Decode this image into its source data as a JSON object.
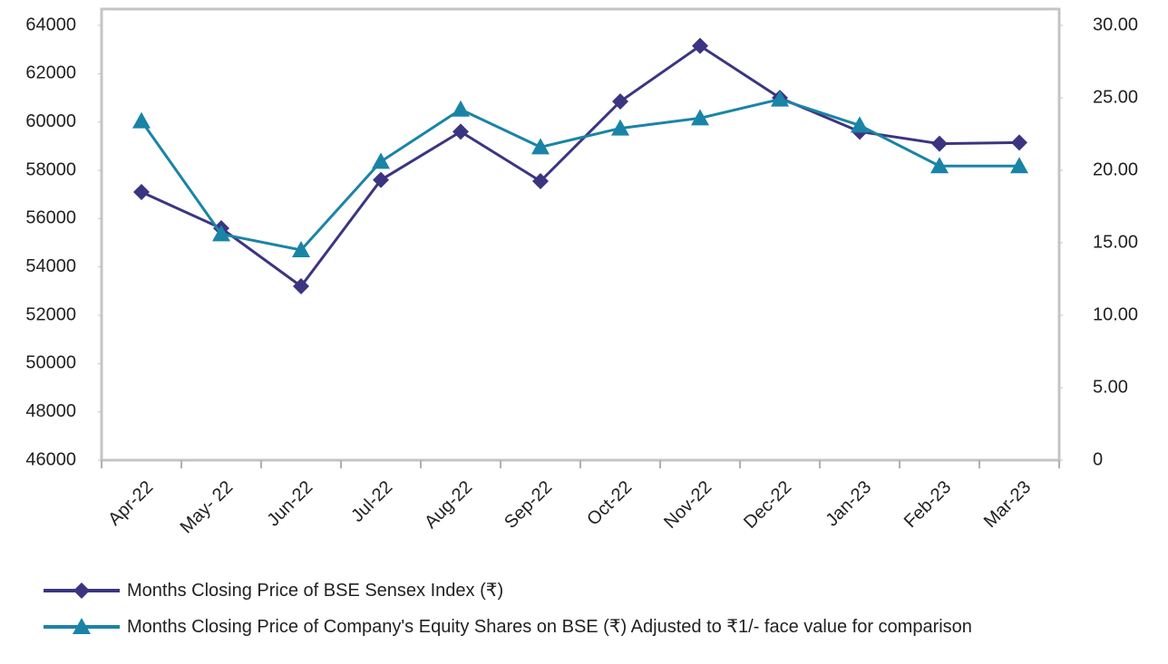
{
  "chart_data": {
    "type": "line",
    "categories": [
      "Apr-22",
      "May- 22",
      "Jun-22",
      "Jul-22",
      "Aug-22",
      "Sep-22",
      "Oct-22",
      "Nov-22",
      "Dec-22",
      "Jan-23",
      "Feb-23",
      "Mar-23"
    ],
    "series": [
      {
        "name": "Months Closing Price of BSE Sensex Index (₹)",
        "color": "#3b3581",
        "marker": "diamond",
        "values": [
          57100,
          55600,
          53200,
          57600,
          59600,
          57550,
          60850,
          63150,
          61000,
          59600,
          59100,
          59150
        ]
      },
      {
        "name": "Months Closing Price of Company's Equity Shares on BSE (₹) Adjusted to ₹1/- face value for comparison",
        "color": "#1a84a6",
        "marker": "triangle",
        "axis": "y2",
        "values": [
          23.4,
          15.6,
          14.5,
          20.6,
          24.2,
          21.6,
          22.9,
          23.6,
          24.9,
          23.1,
          20.3,
          20.3
        ]
      }
    ],
    "ylim": [
      46000,
      64000
    ],
    "yticks": [
      46000,
      48000,
      50000,
      52000,
      54000,
      56000,
      58000,
      60000,
      62000,
      64000
    ],
    "y2lim": [
      0,
      30
    ],
    "y2ticks": [
      0,
      {
        "value": 5,
        "label": "5.00"
      },
      {
        "value": 10,
        "label": "10.00"
      },
      {
        "value": 15,
        "label": "15.00"
      },
      {
        "value": 20,
        "label": "20.00"
      },
      {
        "value": 25,
        "label": "25.00"
      },
      {
        "value": 30,
        "label": "30.00"
      }
    ],
    "grid": false
  }
}
